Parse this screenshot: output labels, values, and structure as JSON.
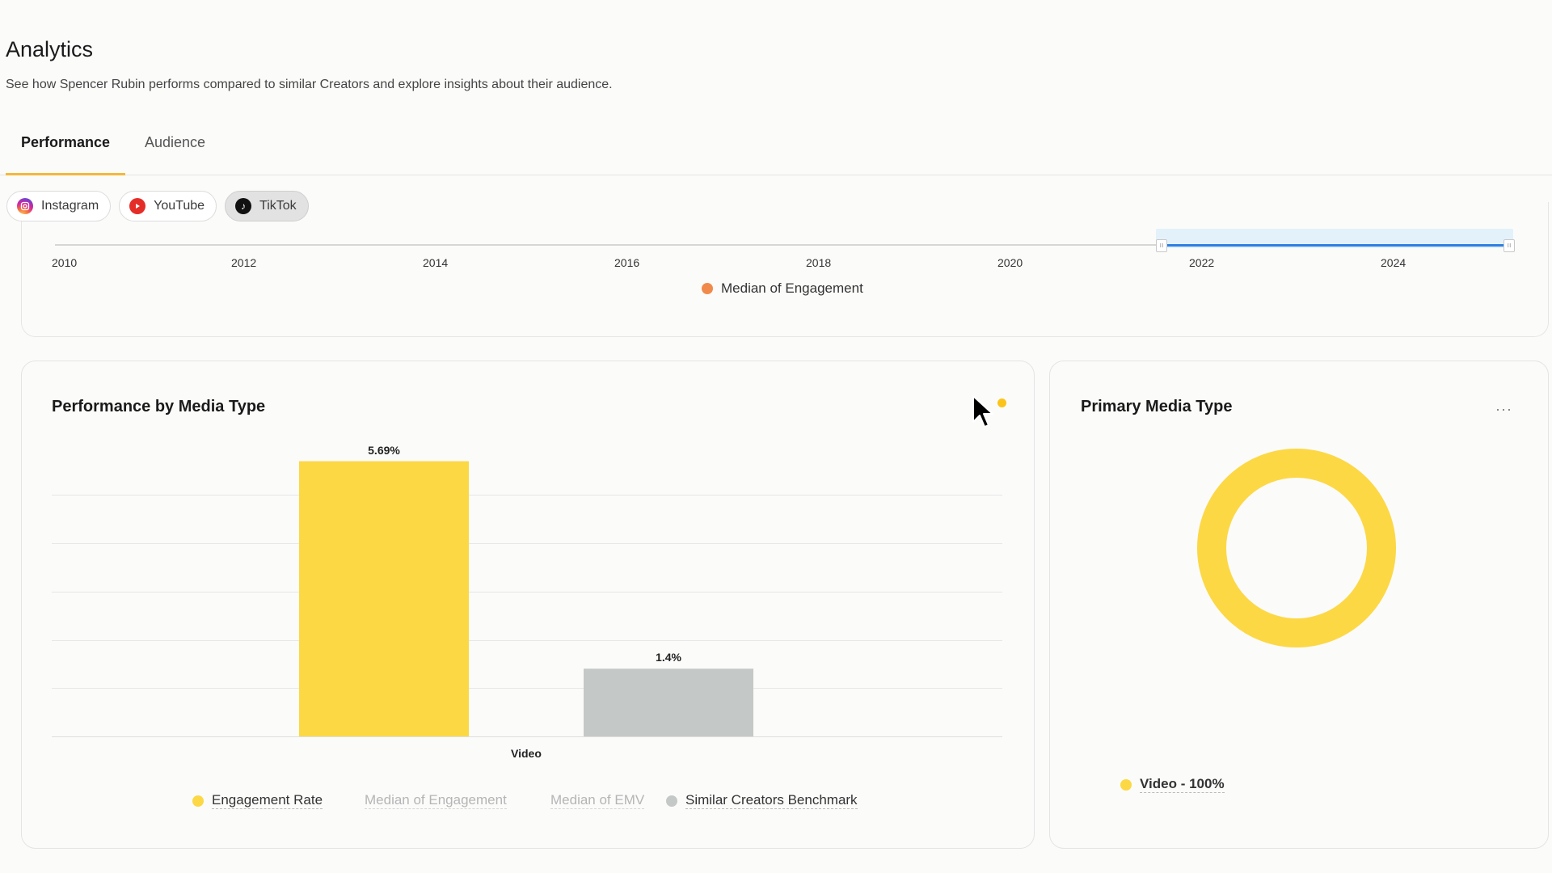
{
  "header": {
    "title": "Analytics",
    "subtitle": "See how Spencer Rubin performs compared to similar Creators and explore insights about their audience."
  },
  "tabs": [
    {
      "label": "Performance",
      "active": true
    },
    {
      "label": "Audience",
      "active": false
    }
  ],
  "platforms": [
    {
      "label": "Instagram",
      "icon": "instagram-icon",
      "selected": false
    },
    {
      "label": "YouTube",
      "icon": "youtube-icon",
      "selected": false
    },
    {
      "label": "TikTok",
      "icon": "tiktok-icon",
      "selected": true
    }
  ],
  "timeline": {
    "years": [
      "2010",
      "2012",
      "2014",
      "2016",
      "2018",
      "2020",
      "2022",
      "2024"
    ],
    "legend": {
      "label": "Median of Engagement",
      "color": "#f08a4b"
    }
  },
  "performance_card": {
    "title": "Performance by Media Type",
    "x_label": "Video",
    "legend": [
      {
        "label": "Engagement Rate",
        "color": "#fcd845",
        "active": true
      },
      {
        "label": "Median of Engagement",
        "active": false
      },
      {
        "label": "Median of EMV",
        "active": false
      },
      {
        "label": "Similar Creators Benchmark",
        "color": "#c4c8c6",
        "active": true
      }
    ]
  },
  "primary_card": {
    "title": "Primary Media Type",
    "menu_label": "···",
    "legend_label": "Video - 100%",
    "color": "#fcd845"
  },
  "chart_data": [
    {
      "type": "bar",
      "categories": [
        "Video"
      ],
      "series": [
        {
          "name": "Engagement Rate",
          "values": [
            5.69
          ],
          "labels": [
            "5.69%"
          ],
          "color": "#fcd845"
        },
        {
          "name": "Similar Creators Benchmark",
          "values": [
            1.4
          ],
          "labels": [
            "1.4%"
          ],
          "color": "#c4c8c6"
        }
      ],
      "title": "Performance by Media Type",
      "xlabel": "Video",
      "ylim": [
        0,
        6
      ]
    },
    {
      "type": "pie",
      "categories": [
        "Video"
      ],
      "values": [
        100
      ],
      "labels": [
        "Video - 100%"
      ],
      "title": "Primary Media Type"
    }
  ]
}
